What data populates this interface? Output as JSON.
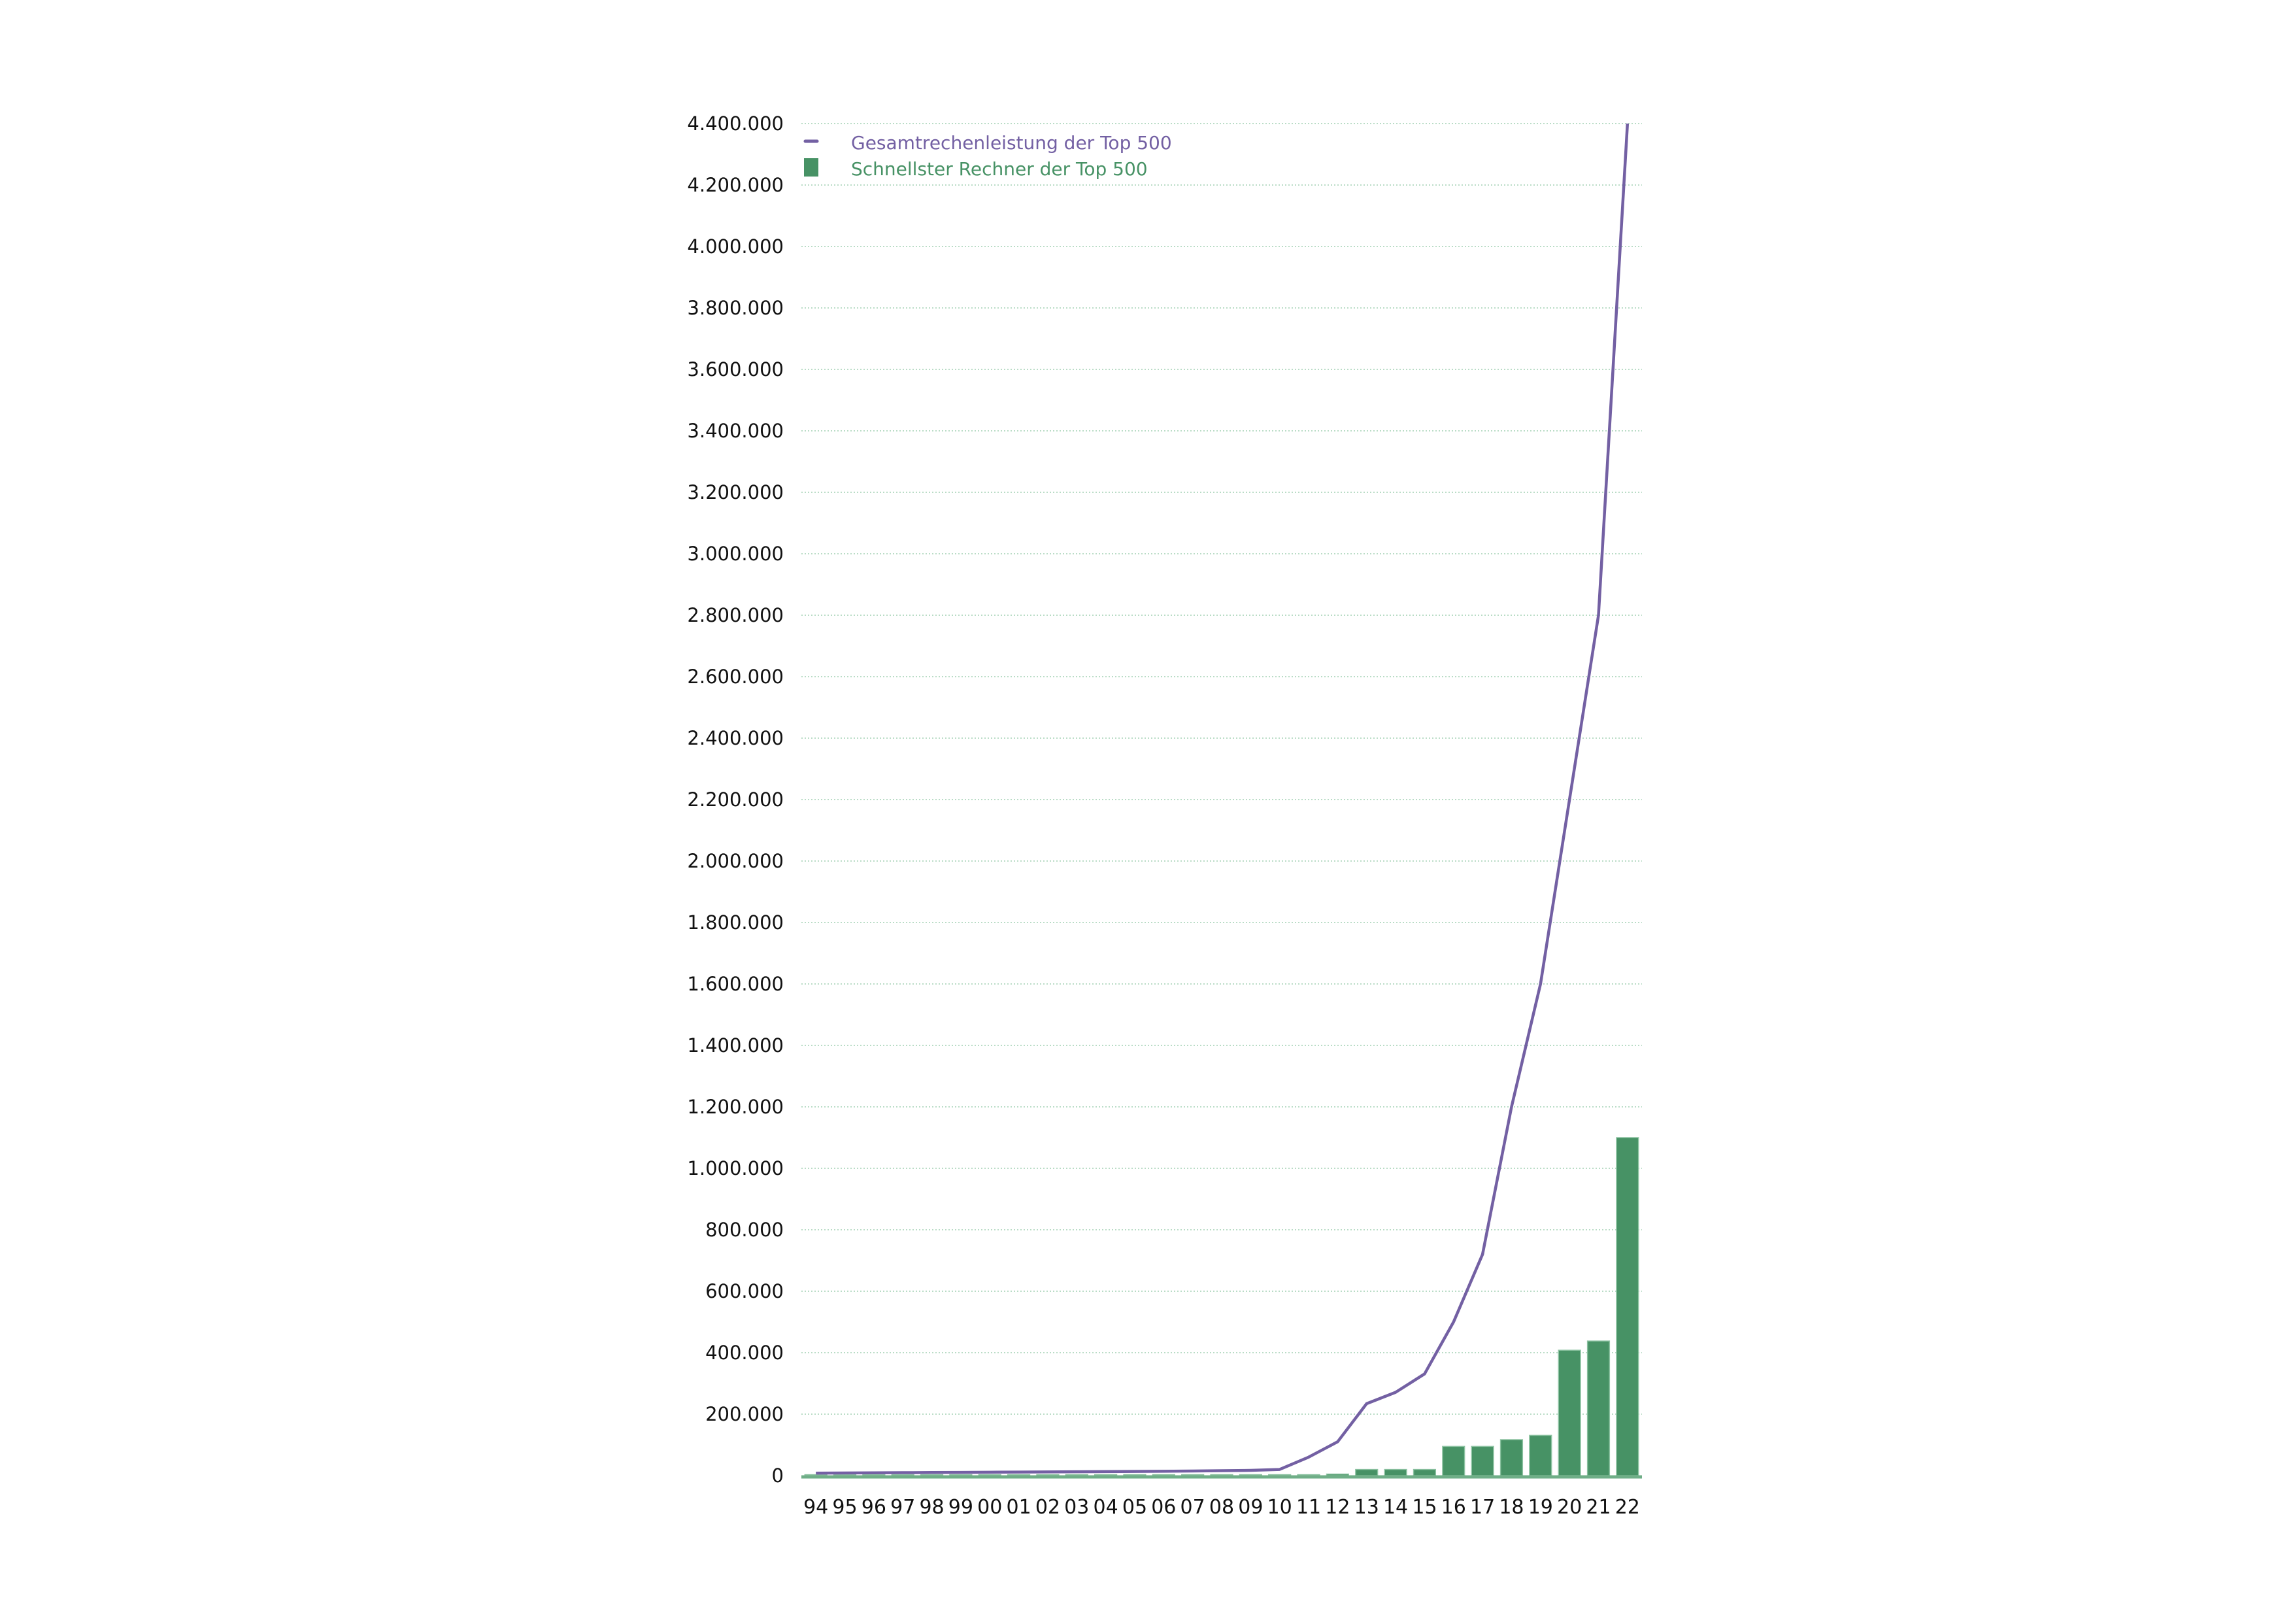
{
  "chart_data": {
    "type": "bar+line",
    "title": "",
    "xlabel": "",
    "ylabel": "",
    "ylim": [
      0,
      4400000
    ],
    "yticks": [
      0,
      200000,
      400000,
      600000,
      800000,
      1000000,
      1200000,
      1400000,
      1600000,
      1800000,
      2000000,
      2200000,
      2400000,
      2600000,
      2800000,
      3000000,
      3200000,
      3400000,
      3600000,
      3800000,
      4000000,
      4200000,
      4400000
    ],
    "ytick_labels": [
      "0",
      "200.000",
      "400.000",
      "600.000",
      "800.000",
      "1.000.000",
      "1.200.000",
      "1.400.000",
      "1.600.000",
      "1.800.000",
      "2.000.000",
      "2.200.000",
      "2.400.000",
      "2.600.000",
      "2.800.000",
      "3.000.000",
      "3.200.000",
      "3.400.000",
      "3.600.000",
      "3.800.000",
      "4.000.000",
      "4.200.000",
      "4.400.000"
    ],
    "grid": true,
    "legend_position": "top-left",
    "categories": [
      "94",
      "95",
      "96",
      "97",
      "98",
      "99",
      "00",
      "01",
      "02",
      "03",
      "04",
      "05",
      "06",
      "07",
      "08",
      "09",
      "10",
      "11",
      "12",
      "13",
      "14",
      "15",
      "16",
      "17",
      "18",
      "19",
      "20",
      "21",
      "22"
    ],
    "series": [
      {
        "name": "Gesamtrechenleistung der Top 500",
        "type": "line",
        "color": "#7360a3",
        "values": [
          8000,
          8500,
          9000,
          9500,
          10000,
          10500,
          11000,
          11500,
          12000,
          12500,
          13000,
          13500,
          14000,
          15000,
          16000,
          17000,
          20000,
          60000,
          110000,
          234000,
          271000,
          331000,
          500000,
          720000,
          1200000,
          1600000,
          2200000,
          2800000,
          4400000
        ]
      },
      {
        "name": "Schnellster Rechner der Top 500",
        "type": "bar",
        "color": "#479265",
        "values": [
          3000,
          3000,
          3000,
          3000,
          3000,
          3000,
          3000,
          3000,
          3000,
          3000,
          3000,
          3000,
          3000,
          3000,
          3000,
          3000,
          3000,
          3000,
          5000,
          20000,
          20000,
          20000,
          95000,
          95000,
          117000,
          131000,
          408000,
          438000,
          1100000
        ]
      }
    ]
  }
}
